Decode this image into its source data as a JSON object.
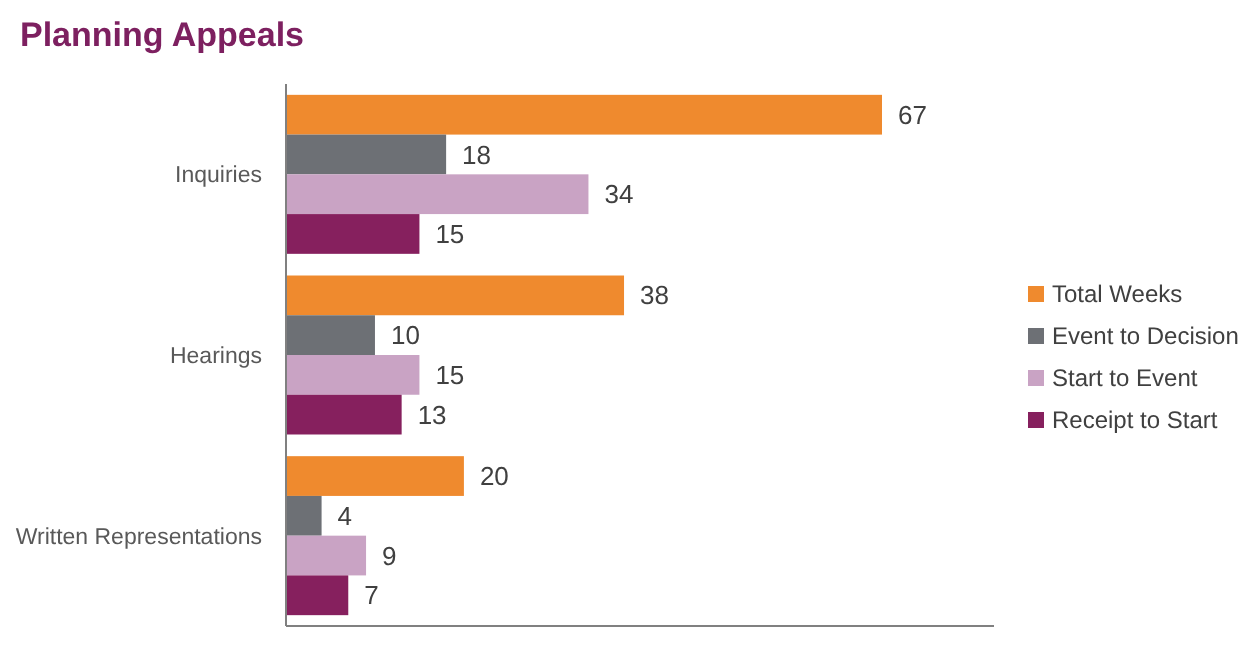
{
  "chart_data": {
    "type": "bar",
    "orientation": "horizontal",
    "title": "Planning Appeals",
    "categories": [
      "Inquiries",
      "Hearings",
      "Written Representations"
    ],
    "series": [
      {
        "name": "Total Weeks",
        "color": "#ef8a2e",
        "values": [
          67,
          38,
          20
        ]
      },
      {
        "name": "Event to Decision",
        "color": "#6d7075",
        "values": [
          18,
          10,
          4
        ]
      },
      {
        "name": "Start to Event",
        "color": "#c9a3c4",
        "values": [
          34,
          15,
          9
        ]
      },
      {
        "name": "Receipt to Start",
        "color": "#86205e",
        "values": [
          15,
          13,
          7
        ]
      }
    ],
    "data_labels": true,
    "legend": "right"
  }
}
